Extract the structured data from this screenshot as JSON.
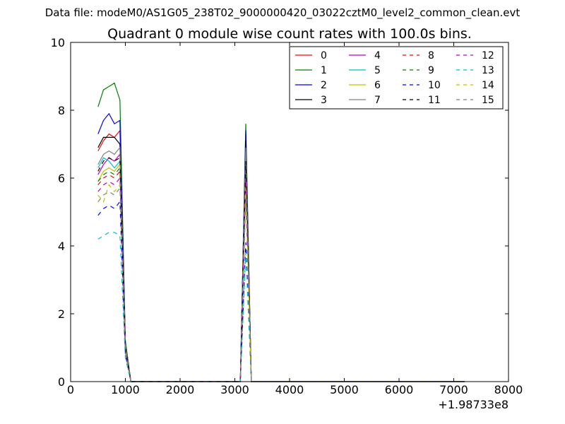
{
  "figure": {
    "suptitle": "Data file: modeM0/AS1G05_238T02_9000000420_03022cztM0_level2_common_clean.evt",
    "title": "Quadrant 0 module wise count rates with 100.0s bins."
  },
  "chart_data": {
    "type": "line",
    "title": "Quadrant 0 module wise count rates with 100.0s bins.",
    "xlabel": "",
    "ylabel": "",
    "x_offset_label": "+1.98733e8",
    "x_offset": 198733000,
    "xlim": [
      0,
      8000
    ],
    "ylim": [
      0,
      10
    ],
    "xticks": [
      0,
      1000,
      2000,
      3000,
      4000,
      5000,
      6000,
      7000,
      8000
    ],
    "xtick_labels": [
      "0",
      "1000",
      "2000",
      "3000",
      "4000",
      "5000",
      "6000",
      "7000",
      "8000"
    ],
    "yticks": [
      0,
      2,
      4,
      6,
      8,
      10
    ],
    "ytick_labels": [
      "0",
      "2",
      "4",
      "6",
      "8",
      "10"
    ],
    "grid": false,
    "legend_position": "top-right",
    "legend_columns": 4,
    "x": [
      500,
      600,
      700,
      800,
      900,
      1000,
      1100,
      1200,
      1300,
      1400,
      1500,
      1600,
      1700,
      1800,
      1900,
      2000,
      2100,
      2200,
      2300,
      2400,
      2500,
      2600,
      2700,
      2800,
      2900,
      3000,
      3100,
      3200,
      3300,
      3400,
      3500,
      3600,
      3700,
      3800,
      3900,
      4000,
      4100,
      4200,
      4300,
      4400,
      4500,
      4600,
      4700,
      4800,
      4900,
      5000,
      5100,
      5200,
      5300,
      5400,
      5500,
      5600,
      5700,
      5800,
      5900,
      6000,
      6100,
      6200,
      6300,
      6400,
      6500,
      6600,
      6700,
      6800,
      6900,
      7000,
      7100,
      7200
    ],
    "series": [
      {
        "name": "0",
        "color": "#ff0000",
        "dash": "solid",
        "values": [
          6.8,
          7.1,
          7.3,
          7.2,
          7.4,
          1.2,
          0,
          0,
          0,
          0,
          0,
          0,
          0,
          0,
          0,
          0,
          0,
          0,
          0,
          0,
          0,
          0,
          0,
          0,
          0,
          0,
          0,
          7.2,
          0,
          0,
          0,
          0,
          0,
          0,
          0,
          0,
          0,
          0,
          0,
          0,
          0,
          0,
          0,
          0,
          0,
          0,
          0,
          0,
          0,
          0,
          0,
          0,
          0,
          0,
          0,
          0,
          0,
          0,
          0,
          0,
          0,
          0,
          0,
          0,
          0,
          0,
          0,
          0
        ]
      },
      {
        "name": "1",
        "color": "#008000",
        "dash": "solid",
        "values": [
          8.1,
          8.6,
          8.7,
          8.8,
          8.3,
          1.2,
          0,
          0,
          0,
          0,
          0,
          0,
          0,
          0,
          0,
          0,
          0,
          0,
          0,
          0,
          0,
          0,
          0,
          0,
          0,
          0,
          0,
          7.6,
          0,
          0,
          0,
          0,
          0,
          0,
          0,
          0,
          0,
          0,
          0,
          0,
          0,
          0,
          0,
          0,
          0,
          0,
          0,
          0,
          0,
          0,
          0,
          0,
          0,
          0,
          0,
          0,
          0,
          0,
          0,
          0,
          0,
          0,
          0,
          0,
          0,
          0,
          0,
          0
        ]
      },
      {
        "name": "2",
        "color": "#0000ff",
        "dash": "solid",
        "values": [
          7.3,
          7.7,
          7.9,
          7.6,
          7.7,
          1.1,
          0,
          0,
          0,
          0,
          0,
          0,
          0,
          0,
          0,
          0,
          0,
          0,
          0,
          0,
          0,
          0,
          0,
          0,
          0,
          0,
          0,
          7.4,
          0,
          0,
          0,
          0,
          0,
          0,
          0,
          0,
          0,
          0,
          0,
          0,
          0,
          0,
          0,
          0,
          0,
          0,
          0,
          0,
          0,
          0,
          0,
          0,
          0,
          0,
          0,
          0,
          0,
          0,
          0,
          0,
          0,
          0,
          0,
          0,
          0,
          0,
          0,
          0
        ]
      },
      {
        "name": "3",
        "color": "#000000",
        "dash": "solid",
        "values": [
          6.9,
          7.2,
          7.2,
          7.2,
          7.0,
          1.1,
          0,
          0,
          0,
          0,
          0,
          0,
          0,
          0,
          0,
          0,
          0,
          0,
          0,
          0,
          0,
          0,
          0,
          0,
          0,
          0,
          0,
          7.1,
          0,
          0,
          0,
          0,
          0,
          0,
          0,
          0,
          0,
          0,
          0,
          0,
          0,
          0,
          0,
          0,
          0,
          0,
          0,
          0,
          0,
          0,
          0,
          0,
          0,
          0,
          0,
          0,
          0,
          0,
          0,
          0,
          0,
          0,
          0,
          0,
          0,
          0,
          0,
          0
        ]
      },
      {
        "name": "4",
        "color": "#bf00bf",
        "dash": "solid",
        "values": [
          6.1,
          6.4,
          6.6,
          6.5,
          6.7,
          1.0,
          0,
          0,
          0,
          0,
          0,
          0,
          0,
          0,
          0,
          0,
          0,
          0,
          0,
          0,
          0,
          0,
          0,
          0,
          0,
          0,
          0,
          6.6,
          0,
          0,
          0,
          0,
          0,
          0,
          0,
          0,
          0,
          0,
          0,
          0,
          0,
          0,
          0,
          0,
          0,
          0,
          0,
          0,
          0,
          0,
          0,
          0,
          0,
          0,
          0,
          0,
          0,
          0,
          0,
          0,
          0,
          0,
          0,
          0,
          0,
          0,
          0,
          0
        ]
      },
      {
        "name": "5",
        "color": "#00bfbf",
        "dash": "solid",
        "values": [
          6.3,
          6.6,
          6.5,
          6.3,
          6.5,
          1.0,
          0,
          0,
          0,
          0,
          0,
          0,
          0,
          0,
          0,
          0,
          0,
          0,
          0,
          0,
          0,
          0,
          0,
          0,
          0,
          0,
          0,
          6.8,
          0,
          0,
          0,
          0,
          0,
          0,
          0,
          0,
          0,
          0,
          0,
          0,
          0,
          0,
          0,
          0,
          0,
          0,
          0,
          0,
          0,
          0,
          0,
          0,
          0,
          0,
          0,
          0,
          0,
          0,
          0,
          0,
          0,
          0,
          0,
          0,
          0,
          0,
          0,
          0
        ]
      },
      {
        "name": "6",
        "color": "#bfbf00",
        "dash": "solid",
        "values": [
          5.9,
          6.2,
          6.3,
          6.2,
          6.4,
          1.0,
          0,
          0,
          0,
          0,
          0,
          0,
          0,
          0,
          0,
          0,
          0,
          0,
          0,
          0,
          0,
          0,
          0,
          0,
          0,
          0,
          0,
          6.3,
          0,
          0,
          0,
          0,
          0,
          0,
          0,
          0,
          0,
          0,
          0,
          0,
          0,
          0,
          0,
          0,
          0,
          0,
          0,
          0,
          0,
          0,
          0,
          0,
          0,
          0,
          0,
          0,
          0,
          0,
          0,
          0,
          0,
          0,
          0,
          0,
          0,
          0,
          0,
          0
        ]
      },
      {
        "name": "7",
        "color": "#808080",
        "dash": "solid",
        "values": [
          6.4,
          6.7,
          6.8,
          6.7,
          6.9,
          1.1,
          0,
          0,
          0,
          0,
          0,
          0,
          0,
          0,
          0,
          0,
          0,
          0,
          0,
          0,
          0,
          0,
          0,
          0,
          0,
          0,
          0,
          6.9,
          0,
          0,
          0,
          0,
          0,
          0,
          0,
          0,
          0,
          0,
          0,
          0,
          0,
          0,
          0,
          0,
          0,
          0,
          0,
          0,
          0,
          0,
          0,
          0,
          0,
          0,
          0,
          0,
          0,
          0,
          0,
          0,
          0,
          0,
          0,
          0,
          0,
          0,
          0,
          0
        ]
      },
      {
        "name": "8",
        "color": "#ff0000",
        "dash": "dashed",
        "values": [
          5.8,
          6.0,
          6.1,
          6.0,
          6.2,
          0.9,
          0,
          0,
          0,
          0,
          0,
          0,
          0,
          0,
          0,
          0,
          0,
          0,
          0,
          0,
          0,
          0,
          0,
          0,
          0,
          0,
          0,
          5.9,
          0,
          0,
          0,
          0,
          0,
          0,
          0,
          0,
          0,
          0,
          0,
          0,
          0,
          0,
          0,
          0,
          0,
          0,
          0,
          0,
          0,
          0,
          0,
          0,
          0,
          0,
          0,
          0,
          0,
          0,
          0,
          0,
          0,
          0,
          0,
          0,
          0,
          0,
          0,
          0
        ]
      },
      {
        "name": "9",
        "color": "#008000",
        "dash": "dashed",
        "values": [
          5.9,
          6.1,
          6.2,
          6.1,
          6.3,
          1.0,
          0,
          0,
          0,
          0,
          0,
          0,
          0,
          0,
          0,
          0,
          0,
          0,
          0,
          0,
          0,
          0,
          0,
          0,
          0,
          0,
          0,
          6.1,
          0,
          0,
          0,
          0,
          0,
          0,
          0,
          0,
          0,
          0,
          0,
          0,
          0,
          0,
          0,
          0,
          0,
          0,
          0,
          0,
          0,
          0,
          0,
          0,
          0,
          0,
          0,
          0,
          0,
          0,
          0,
          0,
          0,
          0,
          0,
          0,
          0,
          0,
          0,
          0
        ]
      },
      {
        "name": "10",
        "color": "#0000ff",
        "dash": "dashed",
        "values": [
          4.9,
          5.1,
          5.2,
          5.1,
          5.3,
          0.8,
          0,
          0,
          0,
          0,
          0,
          0,
          0,
          0,
          0,
          0,
          0,
          0,
          0,
          0,
          0,
          0,
          0,
          0,
          0,
          0,
          0,
          4.1,
          0,
          0,
          0,
          0,
          0,
          0,
          0,
          0,
          0,
          0,
          0,
          0,
          0,
          0,
          0,
          0,
          0,
          0,
          0,
          0,
          0,
          0,
          0,
          0,
          0,
          0,
          0,
          0,
          0,
          0,
          0,
          0,
          0,
          0,
          0,
          0,
          0,
          0,
          0,
          0
        ]
      },
      {
        "name": "11",
        "color": "#000000",
        "dash": "dashed",
        "values": [
          6.2,
          6.5,
          6.6,
          6.5,
          6.6,
          1.0,
          0,
          0,
          0,
          0,
          0,
          0,
          0,
          0,
          0,
          0,
          0,
          0,
          0,
          0,
          0,
          0,
          0,
          0,
          0,
          0,
          0,
          6.5,
          0,
          0,
          0,
          0,
          0,
          0,
          0,
          0,
          0,
          0,
          0,
          0,
          0,
          0,
          0,
          0,
          0,
          0,
          0,
          0,
          0,
          0,
          0,
          0,
          0,
          0,
          0,
          0,
          0,
          0,
          0,
          0,
          0,
          0,
          0,
          0,
          0,
          0,
          0,
          0
        ]
      },
      {
        "name": "12",
        "color": "#bf00bf",
        "dash": "dashed",
        "values": [
          5.6,
          5.8,
          5.9,
          5.8,
          6.0,
          0.9,
          0,
          0,
          0,
          0,
          0,
          0,
          0,
          0,
          0,
          0,
          0,
          0,
          0,
          0,
          0,
          0,
          0,
          0,
          0,
          0,
          0,
          6.0,
          0,
          0,
          0,
          0,
          0,
          0,
          0,
          0,
          0,
          0,
          0,
          0,
          0,
          0,
          0,
          0,
          0,
          0,
          0,
          0,
          0,
          0,
          0,
          0,
          0,
          0,
          0,
          0,
          0,
          0,
          0,
          0,
          0,
          0,
          0,
          0,
          0,
          0,
          0,
          0
        ]
      },
      {
        "name": "13",
        "color": "#00bfbf",
        "dash": "dashed",
        "values": [
          4.2,
          4.3,
          4.4,
          4.4,
          4.3,
          0.7,
          0,
          0,
          0,
          0,
          0,
          0,
          0,
          0,
          0,
          0,
          0,
          0,
          0,
          0,
          0,
          0,
          0,
          0,
          0,
          0,
          0,
          3.8,
          0,
          0,
          0,
          0,
          0,
          0,
          0,
          0,
          0,
          0,
          0,
          0,
          0,
          0,
          0,
          0,
          0,
          0,
          0,
          0,
          0,
          0,
          0,
          0,
          0,
          0,
          0,
          0,
          0,
          0,
          0,
          0,
          0,
          0,
          0,
          0,
          0,
          0,
          0,
          0
        ]
      },
      {
        "name": "14",
        "color": "#bfbf00",
        "dash": "dashed",
        "values": [
          5.5,
          5.3,
          5.8,
          5.6,
          5.8,
          0.9,
          0,
          0,
          0,
          0,
          0,
          0,
          0,
          0,
          0,
          0,
          0,
          0,
          0,
          0,
          0,
          0,
          0,
          0,
          0,
          0,
          0,
          5.7,
          0,
          0,
          0,
          0,
          0,
          0,
          0,
          0,
          0,
          0,
          0,
          0,
          0,
          0,
          0,
          0,
          0,
          0,
          0,
          0,
          0,
          0,
          0,
          0,
          0,
          0,
          0,
          0,
          0,
          0,
          0,
          0,
          0,
          0,
          0,
          0,
          0,
          0,
          0,
          0
        ]
      },
      {
        "name": "15",
        "color": "#808080",
        "dash": "dashed",
        "values": [
          5.3,
          5.5,
          5.6,
          5.5,
          5.7,
          0.9,
          0,
          0,
          0,
          0,
          0,
          0,
          0,
          0,
          0,
          0,
          0,
          0,
          0,
          0,
          0,
          0,
          0,
          0,
          0,
          0,
          0,
          5.4,
          0,
          0,
          0,
          0,
          0,
          0,
          0,
          0,
          0,
          0,
          0,
          0,
          0,
          0,
          0,
          0,
          0,
          0,
          0,
          0,
          0,
          0,
          0,
          0,
          0,
          0,
          0,
          0,
          0,
          0,
          0,
          0,
          0,
          0,
          0,
          0,
          0,
          0,
          0,
          0
        ]
      }
    ]
  }
}
